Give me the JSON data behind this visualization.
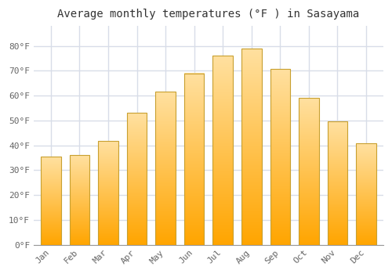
{
  "title": "Average monthly temperatures (°F ) in Sasayama",
  "months": [
    "Jan",
    "Feb",
    "Mar",
    "Apr",
    "May",
    "Jun",
    "Jul",
    "Aug",
    "Sep",
    "Oct",
    "Nov",
    "Dec"
  ],
  "temperatures": [
    35.5,
    36.2,
    41.8,
    53.0,
    61.7,
    69.0,
    76.1,
    78.8,
    70.7,
    59.2,
    49.5,
    40.7
  ],
  "bar_color_bottom": "#FFA500",
  "bar_color_top": "#FFE0A0",
  "bar_edge_color": "#C8A030",
  "ylim": [
    0,
    88
  ],
  "yticks": [
    0,
    10,
    20,
    30,
    40,
    50,
    60,
    70,
    80
  ],
  "ytick_labels": [
    "0°F",
    "10°F",
    "20°F",
    "30°F",
    "40°F",
    "50°F",
    "60°F",
    "70°F",
    "80°F"
  ],
  "background_color": "#ffffff",
  "plot_bg_color": "#ffffff",
  "grid_color": "#d8dde8",
  "title_fontsize": 10,
  "tick_fontsize": 8,
  "font_family": "monospace",
  "title_color": "#333333",
  "tick_color": "#666666"
}
